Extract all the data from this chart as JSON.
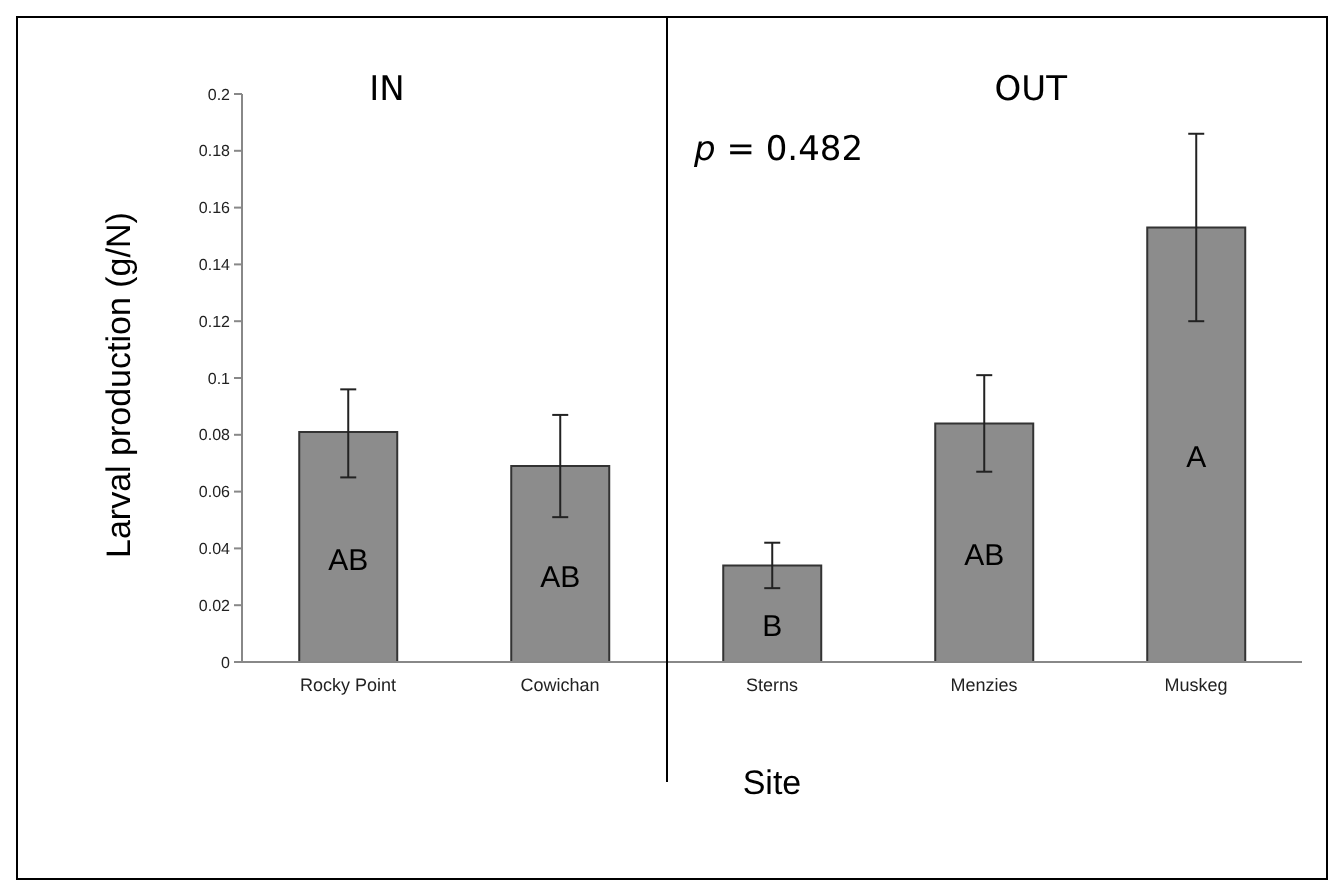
{
  "chart_data": {
    "type": "bar",
    "xlabel": "Site",
    "ylabel": "Larval production (g/N)",
    "categories": [
      "Rocky Point",
      "Cowichan",
      "Sterns",
      "Menzies",
      "Muskeg"
    ],
    "values": [
      0.081,
      0.069,
      0.034,
      0.084,
      0.153
    ],
    "errors": [
      [
        0.065,
        0.096
      ],
      [
        0.051,
        0.087
      ],
      [
        0.026,
        0.042
      ],
      [
        0.067,
        0.101
      ],
      [
        0.12,
        0.186
      ]
    ],
    "color": "#8c8c8c",
    "value_labels": [
      "AB",
      "AB",
      "B",
      "AB",
      "A"
    ],
    "ylim": [
      0,
      0.2
    ],
    "yticks": [
      0,
      0.02,
      0.04,
      0.06,
      0.08,
      0.1,
      0.12,
      0.14,
      0.16,
      0.18,
      0.2
    ],
    "grid": false,
    "annotations": [
      "IN",
      "OUT",
      "p = 0.482"
    ]
  }
}
